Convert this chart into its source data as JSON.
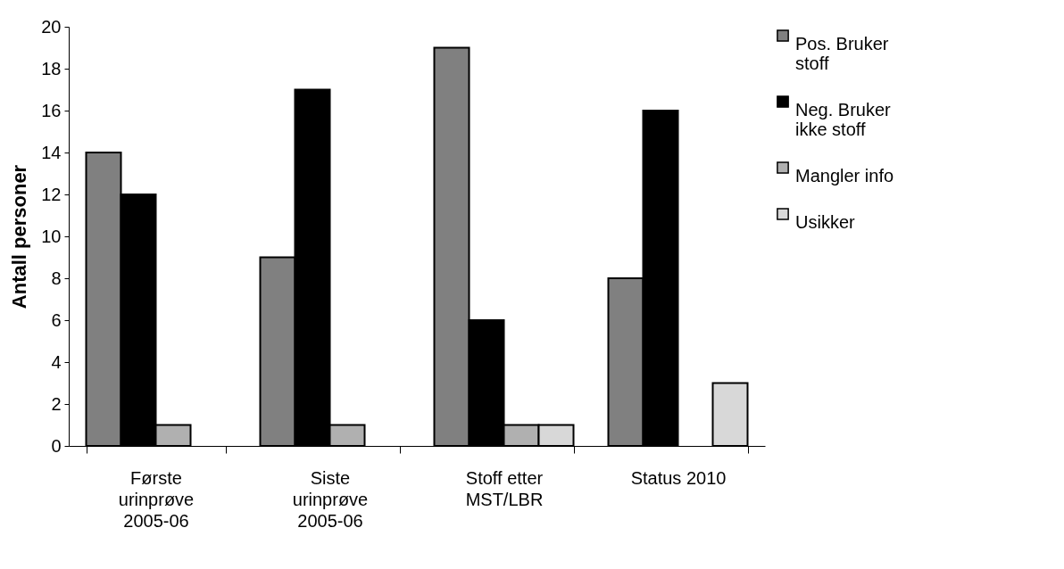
{
  "chart_data": {
    "type": "bar",
    "ylabel": "Antall personer",
    "categories": [
      "Første urinprøve 2005-06",
      "Siste urinprøve 2005-06",
      "Stoff etter MST/LBR",
      "Status 2010"
    ],
    "series": [
      {
        "name": "Pos. Bruker stoff",
        "color": "#808080",
        "values": [
          14,
          9,
          19,
          8
        ]
      },
      {
        "name": "Neg. Bruker ikke stoff",
        "color": "#000000",
        "values": [
          12,
          17,
          6,
          16
        ]
      },
      {
        "name": "Mangler info",
        "color": "#b0b0b0",
        "values": [
          1,
          1,
          1,
          null
        ]
      },
      {
        "name": "Usikker",
        "color": "#d8d8d8",
        "values": [
          null,
          null,
          1,
          3
        ]
      }
    ],
    "ylim": [
      0,
      20
    ],
    "yticks": [
      0,
      2,
      4,
      6,
      8,
      10,
      12,
      14,
      16,
      18,
      20
    ],
    "grid": false,
    "legend": "right"
  }
}
